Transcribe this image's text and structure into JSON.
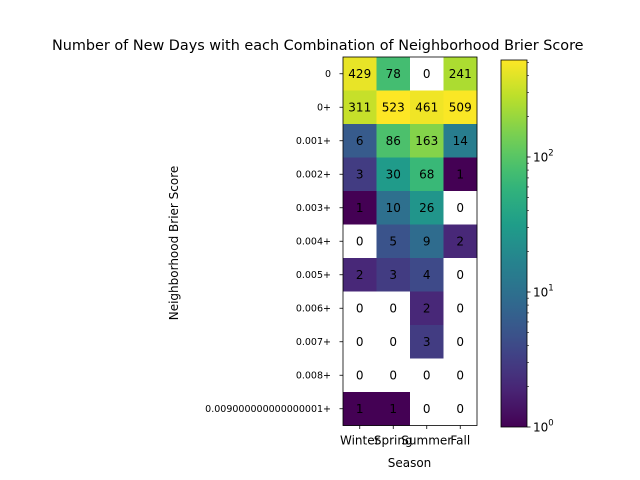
{
  "chart_data": {
    "type": "heatmap",
    "title": "Number of New Days with each Combination of Neighborhood Brier Score",
    "xlabel": "Season",
    "ylabel": "Neighborhood Brier Score",
    "categories": [
      "Winter",
      "Spring",
      "Summer",
      "Fall"
    ],
    "rows": [
      "0",
      "0+",
      "0.001+",
      "0.002+",
      "0.003+",
      "0.004+",
      "0.005+",
      "0.006+",
      "0.007+",
      "0.008+",
      "0.009000000000000001+"
    ],
    "values": [
      [
        429,
        78,
        0,
        241
      ],
      [
        311,
        523,
        461,
        509
      ],
      [
        6,
        86,
        163,
        14
      ],
      [
        3,
        30,
        68,
        1
      ],
      [
        1,
        10,
        26,
        0
      ],
      [
        0,
        5,
        9,
        2
      ],
      [
        2,
        3,
        4,
        0
      ],
      [
        0,
        0,
        2,
        0
      ],
      [
        0,
        0,
        3,
        0
      ],
      [
        0,
        0,
        0,
        0
      ],
      [
        1,
        1,
        0,
        0
      ]
    ],
    "colorscale": "viridis",
    "log_scale": true,
    "zero_color": "#ffffff",
    "colorbar": {
      "range": [
        1,
        523
      ],
      "ticks": [
        {
          "value": 1,
          "base": "10",
          "exp": "0"
        },
        {
          "value": 10,
          "base": "10",
          "exp": "1"
        },
        {
          "value": 100,
          "base": "10",
          "exp": "2"
        }
      ]
    }
  }
}
